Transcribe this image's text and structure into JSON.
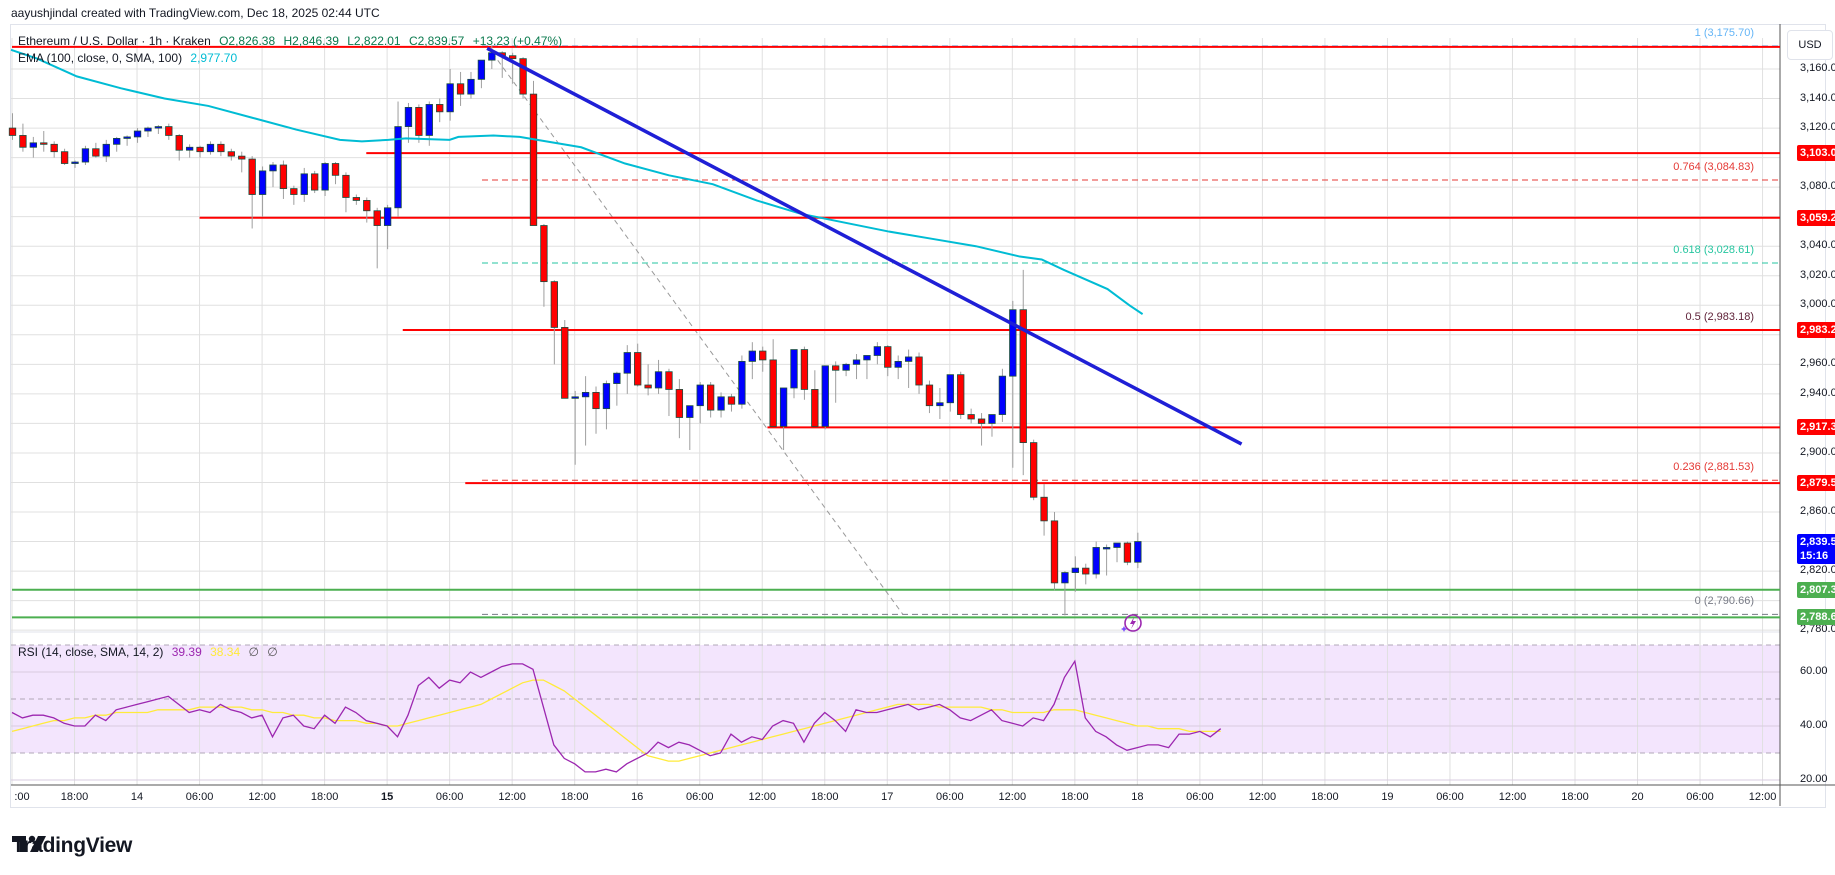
{
  "header": {
    "credit": "aayushjindal created with TradingView.com, Dec 18, 2025 02:44 UTC"
  },
  "legend": {
    "symbol": "Ethereum / U.S. Dollar · 1h · Kraken",
    "open": "O2,826.38",
    "high": "H2,846.39",
    "low": "L2,822.01",
    "close": "C2,839.57",
    "change": "+13.23 (+0.47%)",
    "ema_label": "EMA (100, close, 0, SMA, 100)",
    "ema_value": "2,977.70",
    "rsi_label": "RSI (14, close, SMA, 14, 2)",
    "rsi_value": "39.39",
    "rsi_sma_value": "38.34",
    "rsi_extra1": "∅",
    "rsi_extra2": "∅"
  },
  "currency_button": "USD",
  "colors": {
    "up": "#0000ff",
    "down": "#ff0000",
    "ema": "#00bcd4",
    "trendline": "#1f1fd6",
    "resistance": "#ff0000",
    "support": "#4caf50",
    "rsi": "#9c27b0",
    "rsi_sma": "#ffeb3b",
    "rsi_band": "#f3e5fd",
    "fib_1": "#64b5f6",
    "fib_0764": "#e53935",
    "fib_0618": "#26c6a0",
    "fib_05": "#5d1f36",
    "fib_0236": "#e53935",
    "fib_0": "#787b86",
    "last_price": "#0000ff"
  },
  "price_axis": {
    "ticks": [
      "3,160.00",
      "3,140.00",
      "3,120.00",
      "3,080.00",
      "3,040.00",
      "3,020.00",
      "3,000.00",
      "2,960.00",
      "2,940.00",
      "2,900.00",
      "2,860.00",
      "2,820.00",
      "2,780.00"
    ],
    "tick_values": [
      3160,
      3140,
      3120,
      3080,
      3040,
      3020,
      3000,
      2960,
      2940,
      2900,
      2860,
      2820,
      2780
    ]
  },
  "price_tags": [
    {
      "label": "3,103.04",
      "value": 3103.04,
      "color": "#ff0000"
    },
    {
      "label": "3,059.24",
      "value": 3059.24,
      "color": "#ff0000"
    },
    {
      "label": "2,983.24",
      "value": 2983.24,
      "color": "#ff0000"
    },
    {
      "label": "2,917.31",
      "value": 2917.31,
      "color": "#ff0000"
    },
    {
      "label": "2,879.54",
      "value": 2879.54,
      "color": "#ff0000"
    },
    {
      "label": "2,807.33",
      "value": 2807.33,
      "color": "#4caf50"
    },
    {
      "label": "2,788.64",
      "value": 2788.64,
      "color": "#4caf50"
    }
  ],
  "last_price_tag": {
    "price": "2,839.57",
    "countdown": "15:16",
    "value": 2839.57
  },
  "fib_levels": [
    {
      "label": "1 (3,175.70)",
      "ratio": "1",
      "value": 3175.7
    },
    {
      "label": "0.764 (3,084.83)",
      "ratio": "0.764",
      "value": 3084.83
    },
    {
      "label": "0.618 (3,028.61)",
      "ratio": "0.618",
      "value": 3028.61
    },
    {
      "label": "0.5 (2,983.18)",
      "ratio": "0.5",
      "value": 2983.18
    },
    {
      "label": "0.236 (2,881.53)",
      "ratio": "0.236",
      "value": 2881.53
    },
    {
      "label": "0 (2,790.66)",
      "ratio": "0",
      "value": 2790.66
    }
  ],
  "rsi_axis": {
    "ticks": [
      "60.00",
      "40.00",
      "20.00"
    ],
    "tick_values": [
      60,
      40,
      20
    ]
  },
  "time_axis": {
    "labels": [
      ":00",
      "18:00",
      "14",
      "06:00",
      "12:00",
      "18:00",
      "15",
      "06:00",
      "12:00",
      "18:00",
      "16",
      "06:00",
      "12:00",
      "18:00",
      "17",
      "06:00",
      "12:00",
      "18:00",
      "18",
      "06:00",
      "12:00",
      "18:00",
      "19",
      "06:00",
      "12:00",
      "18:00",
      "20",
      "06:00",
      "12:00"
    ],
    "bold": [
      false,
      false,
      false,
      false,
      false,
      false,
      true,
      false,
      false,
      false,
      false,
      false,
      false,
      false,
      false,
      false,
      false,
      false,
      false,
      false,
      false,
      false,
      false,
      false,
      false,
      false,
      false,
      false,
      false
    ]
  },
  "logo": {
    "text": "TradingView"
  },
  "chart_data": {
    "type": "candlestick",
    "title": "Ethereum / U.S. Dollar · 1h · Kraken",
    "xlabel": "",
    "ylabel": "USD",
    "ylim": [
      2770,
      3185
    ],
    "grid": true,
    "x_start": "Dec 13 12:00",
    "interval_hours": 1,
    "ohlc": [
      [
        3120,
        3130,
        3112,
        3115
      ],
      [
        3115,
        3123,
        3104,
        3107
      ],
      [
        3107,
        3114,
        3100,
        3110
      ],
      [
        3110,
        3118,
        3104,
        3109
      ],
      [
        3109,
        3111,
        3100,
        3104
      ],
      [
        3104,
        3106,
        3095,
        3096
      ],
      [
        3096,
        3098,
        3093,
        3097
      ],
      [
        3097,
        3108,
        3095,
        3106
      ],
      [
        3106,
        3110,
        3100,
        3101
      ],
      [
        3101,
        3112,
        3097,
        3109
      ],
      [
        3109,
        3114,
        3104,
        3113
      ],
      [
        3113,
        3115,
        3108,
        3114
      ],
      [
        3114,
        3120,
        3110,
        3118
      ],
      [
        3118,
        3121,
        3114,
        3120
      ],
      [
        3120,
        3122,
        3116,
        3121
      ],
      [
        3121,
        3123,
        3112,
        3115
      ],
      [
        3115,
        3116,
        3098,
        3105
      ],
      [
        3105,
        3109,
        3100,
        3107
      ],
      [
        3107,
        3108,
        3100,
        3104
      ],
      [
        3104,
        3111,
        3102,
        3109
      ],
      [
        3109,
        3111,
        3101,
        3104
      ],
      [
        3104,
        3106,
        3098,
        3101
      ],
      [
        3101,
        3104,
        3090,
        3099
      ],
      [
        3099,
        3101,
        3052,
        3075
      ],
      [
        3075,
        3094,
        3060,
        3091
      ],
      [
        3091,
        3097,
        3080,
        3095
      ],
      [
        3095,
        3098,
        3072,
        3079
      ],
      [
        3079,
        3081,
        3068,
        3075
      ],
      [
        3075,
        3093,
        3070,
        3089
      ],
      [
        3089,
        3091,
        3076,
        3078
      ],
      [
        3078,
        3097,
        3074,
        3096
      ],
      [
        3096,
        3097,
        3082,
        3088
      ],
      [
        3088,
        3090,
        3063,
        3073
      ],
      [
        3073,
        3075,
        3068,
        3071
      ],
      [
        3071,
        3073,
        3056,
        3064
      ],
      [
        3064,
        3066,
        3025,
        3054
      ],
      [
        3054,
        3068,
        3038,
        3066
      ],
      [
        3066,
        3138,
        3060,
        3121
      ],
      [
        3121,
        3137,
        3110,
        3134
      ],
      [
        3134,
        3136,
        3110,
        3115
      ],
      [
        3115,
        3138,
        3108,
        3136
      ],
      [
        3136,
        3140,
        3124,
        3131
      ],
      [
        3131,
        3160,
        3125,
        3150
      ],
      [
        3150,
        3158,
        3135,
        3143
      ],
      [
        3143,
        3158,
        3140,
        3153
      ],
      [
        3153,
        3166,
        3147,
        3166
      ],
      [
        3166,
        3176,
        3160,
        3171
      ],
      [
        3171,
        3172,
        3154,
        3169
      ],
      [
        3169,
        3171,
        3150,
        3167
      ],
      [
        3167,
        3168,
        3140,
        3143
      ],
      [
        3143,
        3152,
        3060,
        3054
      ],
      [
        3054,
        3055,
        2999,
        3016
      ],
      [
        3016,
        3017,
        2960,
        2985
      ],
      [
        2985,
        2990,
        2944,
        2937
      ],
      [
        2937,
        2942,
        2892,
        2938
      ],
      [
        2938,
        2952,
        2905,
        2941
      ],
      [
        2941,
        2945,
        2913,
        2930
      ],
      [
        2930,
        2949,
        2916,
        2947
      ],
      [
        2947,
        2955,
        2932,
        2954
      ],
      [
        2954,
        2973,
        2940,
        2968
      ],
      [
        2968,
        2974,
        2945,
        2946
      ],
      [
        2946,
        2960,
        2939,
        2944
      ],
      [
        2944,
        2963,
        2940,
        2955
      ],
      [
        2955,
        2957,
        2925,
        2943
      ],
      [
        2943,
        2950,
        2910,
        2924
      ],
      [
        2924,
        2927,
        2902,
        2932
      ],
      [
        2932,
        2948,
        2920,
        2946
      ],
      [
        2946,
        2948,
        2924,
        2929
      ],
      [
        2929,
        2941,
        2924,
        2938
      ],
      [
        2938,
        2940,
        2928,
        2933
      ],
      [
        2933,
        2966,
        2930,
        2962
      ],
      [
        2962,
        2975,
        2950,
        2969
      ],
      [
        2969,
        2972,
        2955,
        2963
      ],
      [
        2963,
        2977,
        2918,
        2918
      ],
      [
        2918,
        2944,
        2902,
        2944
      ],
      [
        2944,
        2969,
        2937,
        2970
      ],
      [
        2970,
        2972,
        2936,
        2943
      ],
      [
        2943,
        2956,
        2918,
        2918
      ],
      [
        2918,
        2959,
        2916,
        2959
      ],
      [
        2959,
        2962,
        2934,
        2956
      ],
      [
        2956,
        2961,
        2952,
        2960
      ],
      [
        2960,
        2967,
        2950,
        2963
      ],
      [
        2963,
        2964,
        2950,
        2966
      ],
      [
        2966,
        2975,
        2960,
        2972
      ],
      [
        2972,
        2973,
        2952,
        2958
      ],
      [
        2958,
        2966,
        2950,
        2962
      ],
      [
        2962,
        2970,
        2944,
        2965
      ],
      [
        2965,
        2968,
        2940,
        2946
      ],
      [
        2946,
        2949,
        2927,
        2932
      ],
      [
        2932,
        2944,
        2923,
        2934
      ],
      [
        2934,
        2950,
        2928,
        2953
      ],
      [
        2953,
        2955,
        2923,
        2926
      ],
      [
        2926,
        2930,
        2920,
        2923
      ],
      [
        2923,
        2927,
        2905,
        2920
      ],
      [
        2920,
        2926,
        2911,
        2926
      ],
      [
        2926,
        2957,
        2921,
        2952
      ],
      [
        2952,
        3003,
        2890,
        2997
      ],
      [
        2997,
        3024,
        2885,
        2907
      ],
      [
        2907,
        2909,
        2868,
        2870
      ],
      [
        2870,
        2879,
        2844,
        2854
      ],
      [
        2854,
        2860,
        2807,
        2812
      ],
      [
        2812,
        2820,
        2790,
        2819
      ],
      [
        2819,
        2830,
        2806,
        2822
      ],
      [
        2822,
        2825,
        2811,
        2818
      ],
      [
        2818,
        2840,
        2815,
        2836
      ],
      [
        2836,
        2838,
        2817,
        2836
      ],
      [
        2836,
        2838,
        2826,
        2839
      ],
      [
        2839,
        2840,
        2824,
        2826
      ],
      [
        2826,
        2846,
        2822,
        2840
      ]
    ],
    "ema100": [
      [
        0,
        3173
      ],
      [
        60,
        3167
      ],
      [
        150,
        3155
      ],
      [
        250,
        3147
      ],
      [
        350,
        3140
      ],
      [
        450,
        3135
      ],
      [
        550,
        3127
      ],
      [
        650,
        3119
      ],
      [
        750,
        3112
      ],
      [
        800,
        3111
      ],
      [
        860,
        3112
      ],
      [
        900,
        3113
      ],
      [
        1000,
        3112
      ],
      [
        1020,
        3114
      ],
      [
        1100,
        3115
      ],
      [
        1160,
        3114
      ],
      [
        1200,
        3112
      ],
      [
        1300,
        3107
      ],
      [
        1400,
        3096
      ],
      [
        1500,
        3088
      ],
      [
        1600,
        3082
      ],
      [
        1700,
        3071
      ],
      [
        1800,
        3062
      ],
      [
        1900,
        3056
      ],
      [
        2000,
        3050
      ],
      [
        2100,
        3045
      ],
      [
        2200,
        3040
      ],
      [
        2300,
        3033
      ],
      [
        2350,
        3031
      ],
      [
        2400,
        3024
      ],
      [
        2500,
        3011
      ],
      [
        2550,
        3000
      ],
      [
        2580,
        2994
      ]
    ],
    "trendline": {
      "from": {
        "hour": 45.6,
        "price": 3174
      },
      "to": {
        "hour": 118,
        "price": 2906
      }
    },
    "fib_retracement": {
      "high": 3175.7,
      "low": 2790.66,
      "levels": [
        1,
        0.764,
        0.618,
        0.5,
        0.236,
        0
      ]
    },
    "horizontal_levels": [
      {
        "price": 3175.0,
        "color": "red",
        "x_from_hour": 0
      },
      {
        "price": 3103.04,
        "color": "red",
        "x_from_hour": 34
      },
      {
        "price": 3059.24,
        "color": "red",
        "x_from_hour": 18
      },
      {
        "price": 2983.24,
        "color": "red",
        "x_from_hour": 37.5
      },
      {
        "price": 2917.31,
        "color": "red",
        "x_from_hour": 72.5
      },
      {
        "price": 2879.54,
        "color": "red",
        "x_from_hour": 43.5
      },
      {
        "price": 2807.33,
        "color": "green",
        "x_from_hour": 0
      },
      {
        "price": 2788.64,
        "color": "green",
        "x_from_hour": 0
      }
    ],
    "rsi": {
      "range": [
        0,
        100
      ],
      "band": [
        30,
        70
      ],
      "values": [
        45,
        43,
        44,
        44,
        43,
        41,
        40,
        40,
        44,
        42,
        46,
        47,
        48,
        49,
        50,
        51,
        48,
        45,
        46,
        45,
        48,
        46,
        45,
        43,
        44,
        36,
        43,
        44,
        40,
        39,
        44,
        41,
        47,
        45,
        42,
        41,
        40,
        36,
        44,
        55,
        58,
        54,
        57,
        56,
        60,
        58,
        60,
        62,
        63,
        63,
        61,
        47,
        33,
        28,
        26,
        23,
        23,
        24,
        23,
        26,
        28,
        30,
        34,
        32,
        34,
        33,
        31,
        29,
        30,
        37,
        34,
        36,
        35,
        40,
        42,
        41,
        34,
        41,
        45,
        42,
        38,
        46,
        45,
        45,
        46,
        47,
        48,
        46,
        47,
        48,
        46,
        43,
        42,
        44,
        46,
        42,
        41,
        40,
        43,
        42,
        48,
        58,
        64,
        43,
        38,
        36,
        33,
        31,
        32,
        33,
        33,
        32,
        37,
        37,
        38,
        36,
        39
      ],
      "sma": [
        38,
        39,
        40,
        41,
        42,
        42,
        43,
        43,
        44,
        44,
        45,
        45,
        45,
        45,
        46,
        46,
        46,
        46,
        47,
        47,
        47,
        47,
        47,
        46,
        46,
        45,
        45,
        44,
        44,
        43,
        43,
        42,
        42,
        42,
        41,
        41,
        40,
        40,
        41,
        42,
        43,
        44,
        45,
        46,
        47,
        48,
        50,
        52,
        54,
        56,
        57,
        57,
        55,
        53,
        50,
        47,
        44,
        41,
        38,
        35,
        32,
        29,
        28,
        27,
        27,
        28,
        29,
        30,
        31,
        32,
        33,
        34,
        35,
        36,
        37,
        38,
        39,
        40,
        41,
        42,
        43,
        44,
        45,
        46,
        47,
        48,
        48,
        48,
        48,
        47,
        47,
        47,
        47,
        47,
        46,
        46,
        45,
        45,
        45,
        45,
        46,
        46,
        46,
        45,
        44,
        43,
        42,
        41,
        40,
        40,
        39,
        39,
        39,
        38,
        38,
        38,
        38
      ],
      "last_rsi": 39.39,
      "last_sma": 38.34
    }
  }
}
